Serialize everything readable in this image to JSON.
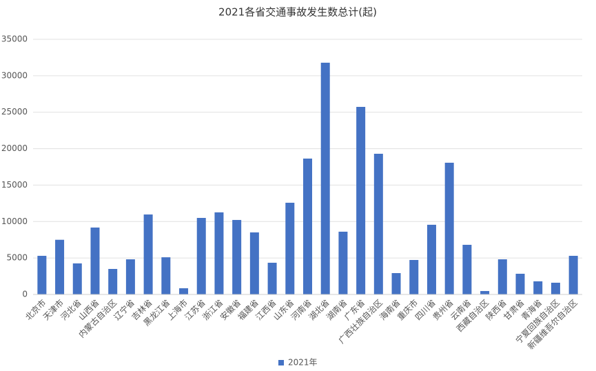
{
  "chart_data": {
    "type": "bar",
    "title": "2021各省交通事故发生数总计(起)",
    "categories": [
      "北京市",
      "天津市",
      "河北省",
      "山西省",
      "内蒙古自治区",
      "辽宁省",
      "吉林省",
      "黑龙江省",
      "上海市",
      "江苏省",
      "浙江省",
      "安徽省",
      "福建省",
      "江西省",
      "山东省",
      "河南省",
      "湖北省",
      "湖南省",
      "广东省",
      "广西壮族自治区",
      "海南省",
      "重庆市",
      "四川省",
      "贵州省",
      "云南省",
      "西藏自治区",
      "陕西省",
      "甘肃省",
      "青海省",
      "宁夏回族自治区",
      "新疆维吾尔自治区"
    ],
    "series": [
      {
        "name": "2021年",
        "color": "#4472c4",
        "values": [
          5300,
          7500,
          4260,
          9180,
          3500,
          4820,
          10970,
          5100,
          850,
          10500,
          11260,
          10220,
          8510,
          4350,
          12580,
          18640,
          31790,
          8610,
          25730,
          19300,
          2930,
          4730,
          9560,
          18070,
          6810,
          470,
          4820,
          2840,
          1800,
          1610,
          5300
        ]
      }
    ],
    "ylim": [
      0,
      35000
    ],
    "yticks": [
      0,
      5000,
      10000,
      15000,
      20000,
      25000,
      30000,
      35000
    ],
    "grid": true,
    "legend": "bottom"
  }
}
